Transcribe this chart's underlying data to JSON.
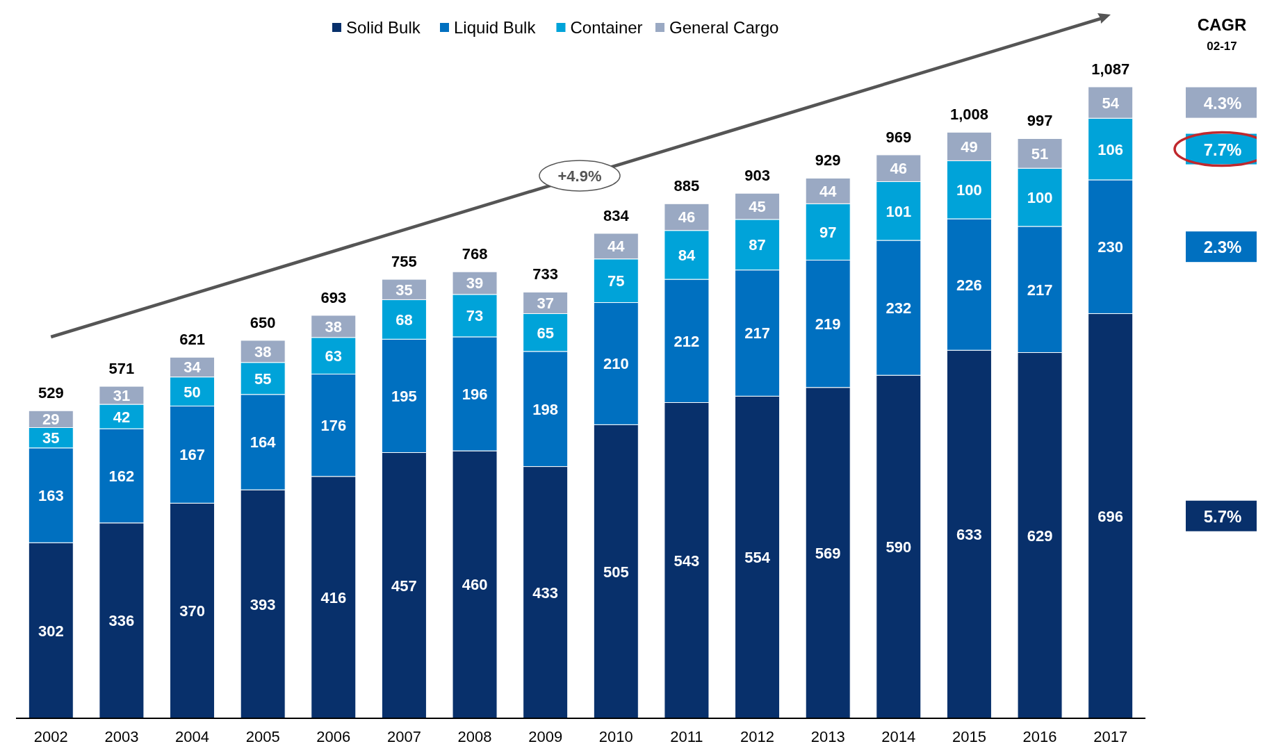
{
  "chart_data": {
    "type": "bar",
    "stacked": true,
    "data_labels": true,
    "legend": "top",
    "grid": false,
    "categories": [
      "2002",
      "2003",
      "2004",
      "2005",
      "2006",
      "2007",
      "2008",
      "2009",
      "2010",
      "2011",
      "2012",
      "2013",
      "2014",
      "2015",
      "2016",
      "2017"
    ],
    "series": [
      {
        "name": "Solid Bulk",
        "color": "#08306b",
        "values": [
          302,
          336,
          370,
          393,
          416,
          457,
          460,
          433,
          505,
          543,
          554,
          569,
          590,
          633,
          629,
          696
        ]
      },
      {
        "name": "Liquid Bulk",
        "color": "#0070c0",
        "values": [
          163,
          162,
          167,
          164,
          176,
          195,
          196,
          198,
          210,
          212,
          217,
          219,
          232,
          226,
          217,
          230
        ]
      },
      {
        "name": "Container",
        "color": "#00a3d9",
        "values": [
          35,
          42,
          50,
          55,
          63,
          68,
          73,
          65,
          75,
          84,
          87,
          97,
          101,
          100,
          100,
          106
        ]
      },
      {
        "name": "General Cargo",
        "color": "#9aa9c3",
        "values": [
          29,
          31,
          34,
          38,
          38,
          35,
          39,
          37,
          44,
          46,
          45,
          44,
          46,
          49,
          51,
          54
        ]
      }
    ],
    "totals": [
      "529",
      "571",
      "621",
      "650",
      "693",
      "755",
      "768",
      "733",
      "834",
      "885",
      "903",
      "929",
      "969",
      "1,008",
      "997",
      "1,087"
    ],
    "annotations": [
      "+4.9%",
      "CAGR",
      "02-17",
      "5.7%",
      "2.3%",
      "7.7%",
      "4.3%"
    ]
  }
}
